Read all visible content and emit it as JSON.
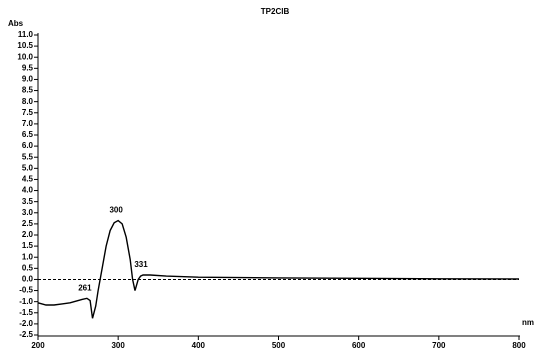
{
  "chart_data": {
    "type": "line",
    "title": "TP2ClB",
    "y_label": "Abs",
    "x_label": "nm",
    "x": [
      200,
      210,
      220,
      230,
      240,
      250,
      255,
      261,
      265,
      268,
      272,
      275,
      280,
      285,
      290,
      295,
      300,
      305,
      310,
      315,
      318,
      321,
      325,
      328,
      331,
      340,
      360,
      400,
      500,
      600,
      700,
      800
    ],
    "series": [
      {
        "name": "TP2ClB",
        "color": "#000000",
        "values": [
          -1.05,
          -1.15,
          -1.15,
          -1.1,
          -1.05,
          -0.95,
          -0.9,
          -0.85,
          -0.95,
          -1.75,
          -1.2,
          -0.5,
          0.5,
          1.5,
          2.2,
          2.55,
          2.65,
          2.5,
          1.9,
          0.9,
          0.0,
          -0.5,
          0.0,
          0.15,
          0.2,
          0.2,
          0.15,
          0.1,
          0.07,
          0.05,
          0.03,
          0.02
        ]
      }
    ],
    "annotations": [
      {
        "x": 300,
        "text": "300"
      },
      {
        "x": 261,
        "text": "261"
      },
      {
        "x": 331,
        "text": "331"
      }
    ],
    "hline": 0,
    "xlim": [
      200,
      800
    ],
    "xticks": [
      200,
      300,
      400,
      500,
      600,
      700,
      800
    ],
    "ylim": [
      -2.5,
      11
    ],
    "yticks": [
      {
        "value": 11,
        "label": "11.0"
      },
      10.5,
      {
        "value": 10,
        "label": "10.0"
      },
      9.5,
      {
        "value": 9,
        "label": "9.0"
      },
      8.5,
      {
        "value": 8,
        "label": "8.0"
      },
      7.5,
      {
        "value": 7,
        "label": "7.0"
      },
      6.5,
      {
        "value": 6,
        "label": "6.0"
      },
      5.5,
      {
        "value": 5,
        "label": "5.0"
      },
      4.5,
      {
        "value": 4,
        "label": "4.0"
      },
      3.5,
      {
        "value": 3,
        "label": "3.0"
      },
      2.5,
      {
        "value": 2,
        "label": "2.0"
      },
      1.5,
      {
        "value": 1,
        "label": "1.0"
      },
      0.5,
      {
        "value": 0,
        "label": "0.0"
      },
      -0.5,
      {
        "value": -1,
        "label": "-1.0"
      },
      -1.5,
      {
        "value": -2,
        "label": "-2.0"
      },
      -2.5
    ]
  }
}
